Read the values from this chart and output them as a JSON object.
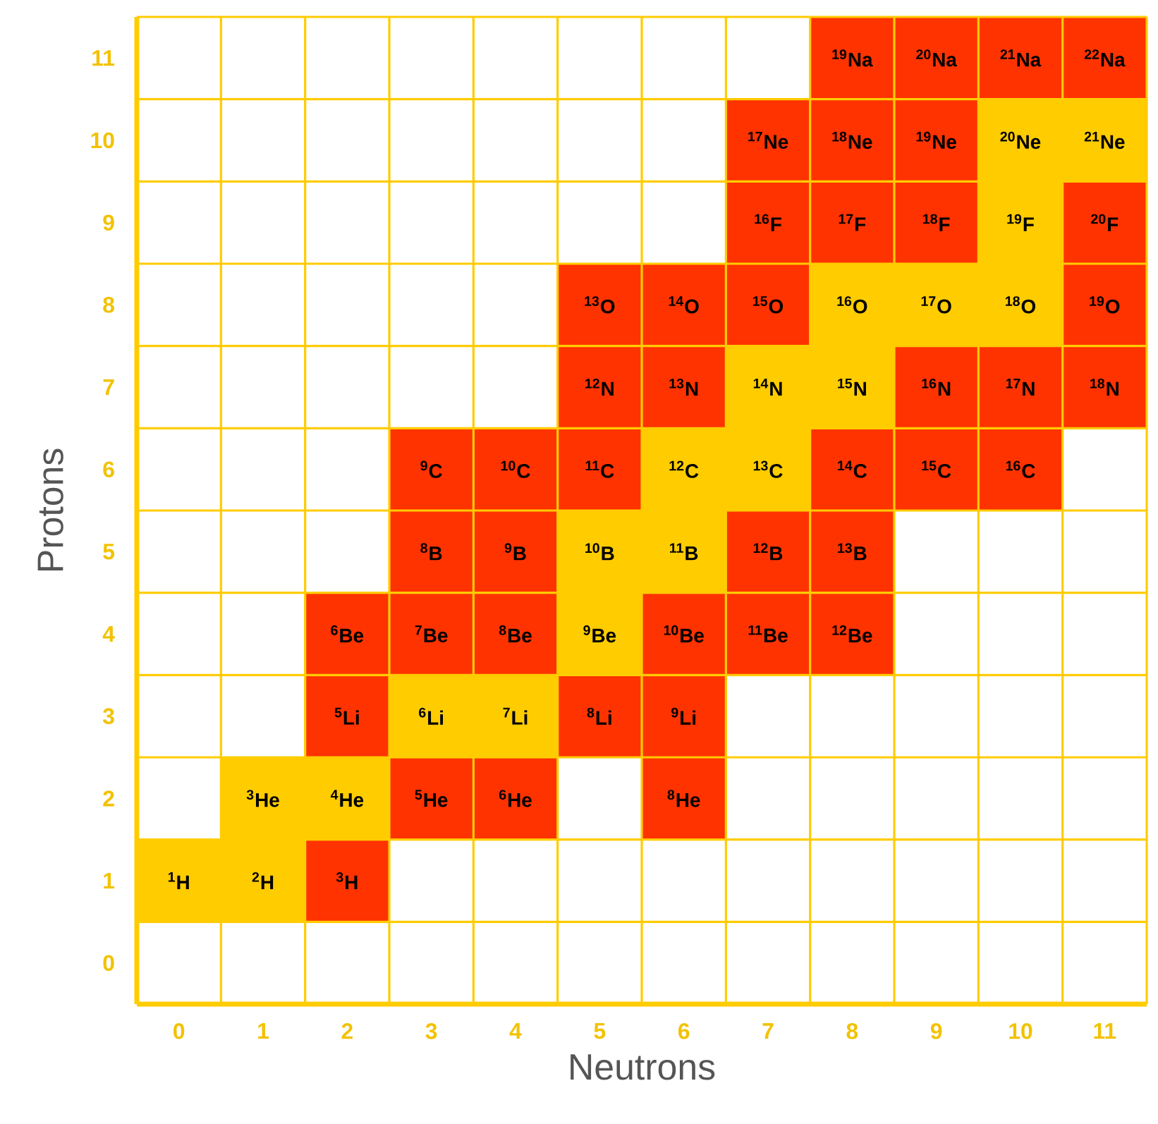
{
  "chart_data": {
    "type": "heatmap",
    "xlabel": "Neutrons",
    "ylabel": "Protons",
    "categories": [
      "0",
      "1",
      "2",
      "3",
      "4",
      "5",
      "6",
      "7",
      "8",
      "9",
      "10",
      "11"
    ],
    "y_categories": [
      "11",
      "10",
      "9",
      "8",
      "7",
      "6",
      "5",
      "4",
      "3",
      "2",
      "1",
      "0"
    ],
    "cells": [
      [
        null,
        null,
        null,
        null,
        null,
        null,
        null,
        null,
        19,
        20,
        21,
        22
      ],
      [
        null,
        null,
        null,
        null,
        null,
        null,
        null,
        17,
        18,
        19,
        20,
        21
      ],
      [
        null,
        null,
        null,
        null,
        null,
        null,
        null,
        16,
        17,
        18,
        19,
        20
      ],
      [
        null,
        null,
        null,
        null,
        null,
        13,
        14,
        15,
        16,
        17,
        18,
        19
      ],
      [
        null,
        null,
        null,
        null,
        null,
        12,
        13,
        14,
        15,
        16,
        17,
        18
      ],
      [
        null,
        null,
        null,
        9,
        10,
        11,
        12,
        13,
        14,
        15,
        16,
        null
      ],
      [
        null,
        null,
        null,
        8,
        9,
        10,
        11,
        12,
        13,
        null,
        null,
        null
      ],
      [
        null,
        null,
        6,
        7,
        8,
        9,
        10,
        11,
        12,
        null,
        null,
        null
      ],
      [
        null,
        null,
        5,
        6,
        7,
        8,
        9,
        null,
        null,
        null,
        null,
        null
      ],
      [
        null,
        3,
        4,
        5,
        6,
        null,
        8,
        null,
        null,
        null,
        null,
        null
      ],
      [
        1,
        2,
        3,
        null,
        null,
        null,
        null,
        null,
        null,
        null,
        null,
        null
      ],
      [
        null,
        null,
        null,
        null,
        null,
        null,
        null,
        null,
        null,
        null,
        null,
        null
      ]
    ],
    "colors": [
      [
        null,
        null,
        null,
        null,
        null,
        null,
        null,
        null,
        "#ff3300",
        "#ff3300",
        "#ff3300",
        "#ff3300"
      ],
      [
        null,
        null,
        null,
        null,
        null,
        null,
        null,
        "#ff3300",
        "#ff3300",
        "#ff3300",
        "#ffcc00",
        "#ffcc00"
      ],
      [
        null,
        null,
        null,
        null,
        null,
        null,
        null,
        "#ff3300",
        "#ff3300",
        "#ff3300",
        "#ffcc00",
        "#ff3300"
      ],
      [
        null,
        null,
        null,
        null,
        null,
        "#ff3300",
        "#ff3300",
        "#ff3300",
        "#ffcc00",
        "#ffcc00",
        "#ffcc00",
        "#ff3300"
      ],
      [
        null,
        null,
        null,
        null,
        null,
        "#ff3300",
        "#ff3300",
        "#ffcc00",
        "#ffcc00",
        "#ff3300",
        "#ff3300",
        "#ff3300"
      ],
      [
        null,
        null,
        null,
        "#ff3300",
        "#ff3300",
        "#ff3300",
        "#ffcc00",
        "#ffcc00",
        "#ff3300",
        "#ff3300",
        "#ff3300",
        null
      ],
      [
        null,
        null,
        null,
        "#ff3300",
        "#ff3300",
        "#ffcc00",
        "#ffcc00",
        "#ff3300",
        "#ff3300",
        null,
        null,
        null
      ],
      [
        null,
        null,
        "#ff3300",
        "#ff3300",
        "#ff3300",
        "#ffcc00",
        "#ff3300",
        "#ff3300",
        "#ff3300",
        null,
        null,
        null
      ],
      [
        null,
        null,
        "#ff3300",
        "#ffcc00",
        "#ffcc00",
        "#ff3300",
        "#ff3300",
        null,
        null,
        null,
        null,
        null
      ],
      [
        null,
        "#ffcc00",
        "#ffcc00",
        "#ff3300",
        "#ff3300",
        null,
        "#ff3300",
        null,
        null,
        null,
        null,
        null
      ],
      [
        "#ffcc00",
        "#ffcc00",
        "#ff3300",
        null,
        null,
        null,
        null,
        null,
        null,
        null,
        null,
        null
      ],
      [
        null,
        null,
        null,
        null,
        null,
        null,
        null,
        null,
        null,
        null,
        null,
        null
      ]
    ],
    "annotations": [
      "Na",
      "Na",
      "Na",
      "Na",
      "Ne",
      "Ne",
      "Ne",
      "Ne",
      "Ne",
      "F",
      "F",
      "F",
      "F",
      "F",
      "O",
      "O",
      "O",
      "O",
      "O",
      "O",
      "O",
      "N",
      "N",
      "N",
      "N",
      "N",
      "N",
      "N",
      "C",
      "C",
      "C",
      "C",
      "C",
      "C",
      "C",
      "C",
      "B",
      "B",
      "B",
      "B",
      "B",
      "B",
      "Be",
      "Be",
      "Be",
      "Be",
      "Be",
      "Be",
      "Be",
      "Li",
      "Li",
      "Li",
      "Li",
      "Li",
      "He",
      "He",
      "He",
      "He",
      "He",
      "H",
      "H",
      "H"
    ],
    "data_labels": true,
    "grid": true
  }
}
